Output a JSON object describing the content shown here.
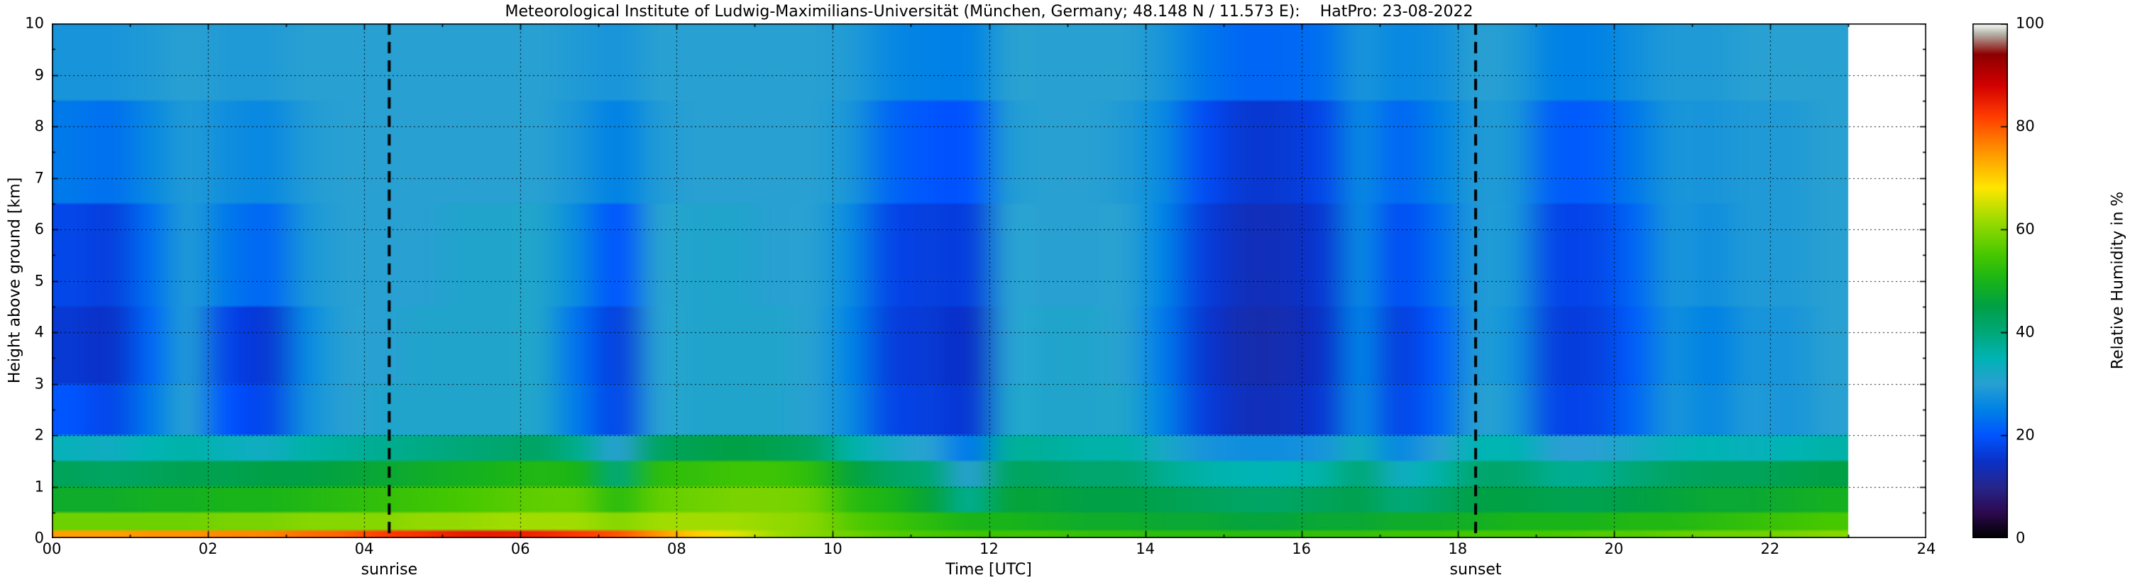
{
  "chart_data": {
    "type": "heatmap",
    "title": "Meteorological Institute of Ludwig-Maximilians-Universität (München, Germany; 48.148 N / 11.573 E):    HatPro: 23-08-2022",
    "xlabel": "Time [UTC]",
    "ylabel": "Height above ground [km]",
    "colorbar_label": "Relative Humidity in %",
    "x_range": [
      0,
      24
    ],
    "y_range": [
      0,
      10
    ],
    "value_range": [
      0,
      100
    ],
    "grid_on": true,
    "data_end_time": 23,
    "x_ticks": {
      "values": [
        0,
        2,
        4,
        6,
        8,
        10,
        12,
        14,
        16,
        18,
        20,
        22,
        24
      ],
      "labels": [
        "00",
        "02",
        "04",
        "06",
        "08",
        "10",
        "12",
        "14",
        "16",
        "18",
        "20",
        "22",
        "24"
      ]
    },
    "y_ticks": {
      "values": [
        0,
        1,
        2,
        3,
        4,
        5,
        6,
        7,
        8,
        9,
        10
      ],
      "labels": [
        "0",
        "1",
        "2",
        "3",
        "4",
        "5",
        "6",
        "7",
        "8",
        "9",
        "10"
      ]
    },
    "colorbar_ticks": {
      "values": [
        0,
        20,
        40,
        60,
        80,
        100
      ],
      "labels": [
        "0",
        "20",
        "40",
        "60",
        "80",
        "100"
      ]
    },
    "x_grid": [
      2,
      4,
      6,
      8,
      10,
      12,
      14,
      16,
      18,
      20,
      22
    ],
    "y_grid": [
      1,
      2,
      3,
      4,
      5,
      6,
      7,
      8,
      9
    ],
    "sunrise": {
      "time_utc": 4.32,
      "label": "sunrise"
    },
    "sunset": {
      "time_utc": 18.23,
      "label": "sunset"
    },
    "colormap": [
      [
        0,
        "#000000"
      ],
      [
        5,
        "#2d0a50"
      ],
      [
        10,
        "#26268c"
      ],
      [
        15,
        "#0a32c8"
      ],
      [
        20,
        "#0055ff"
      ],
      [
        25,
        "#0082e6"
      ],
      [
        30,
        "#28a0d2"
      ],
      [
        35,
        "#00b4b4"
      ],
      [
        40,
        "#00a878"
      ],
      [
        45,
        "#00a046"
      ],
      [
        50,
        "#19b419"
      ],
      [
        55,
        "#46c800"
      ],
      [
        62,
        "#a0dc00"
      ],
      [
        68,
        "#ffe600"
      ],
      [
        75,
        "#ff9600"
      ],
      [
        82,
        "#ff3c00"
      ],
      [
        88,
        "#d20000"
      ],
      [
        94,
        "#8c0000"
      ],
      [
        98,
        "#b4b4aa"
      ],
      [
        100,
        "#ffffff"
      ]
    ],
    "grid": {
      "units": "relative humidity percent, rows bottom_to_top",
      "time_edges": [
        0,
        0.5,
        1,
        1.5,
        2,
        2.5,
        3,
        3.5,
        4,
        4.5,
        5,
        5.5,
        6,
        6.5,
        7,
        7.5,
        8,
        8.5,
        9,
        9.5,
        10,
        10.5,
        11,
        11.5,
        12,
        12.5,
        13,
        13.5,
        14,
        14.5,
        15,
        15.5,
        16,
        16.5,
        17,
        17.5,
        18,
        18.5,
        19,
        19.5,
        20,
        20.5,
        21,
        21.5,
        22,
        22.5,
        23
      ],
      "height_edges": [
        0,
        0.15,
        0.5,
        1.0,
        1.5,
        2.0,
        3.0,
        4.5,
        6.5,
        8.5,
        10
      ],
      "values": [
        [
          74,
          74,
          75,
          75,
          76,
          76,
          78,
          79,
          82,
          83,
          85,
          85,
          84,
          82,
          80,
          75,
          70,
          66,
          62,
          60,
          58,
          56,
          55,
          54,
          54,
          54,
          53,
          53,
          52,
          52,
          52,
          52,
          53,
          53,
          54,
          54,
          55,
          55,
          55,
          56,
          56,
          57,
          58,
          58,
          59,
          60
        ],
        [
          58,
          58,
          58,
          58,
          59,
          59,
          60,
          60,
          60,
          61,
          61,
          62,
          62,
          62,
          60,
          62,
          62,
          62,
          61,
          60,
          56,
          54,
          52,
          50,
          50,
          49,
          48,
          48,
          47,
          47,
          46,
          46,
          47,
          47,
          48,
          48,
          49,
          50,
          50,
          50,
          51,
          51,
          52,
          53,
          54,
          55
        ],
        [
          48,
          48,
          49,
          49,
          50,
          50,
          51,
          52,
          53,
          54,
          55,
          56,
          57,
          57,
          52,
          57,
          58,
          59,
          59,
          58,
          52,
          50,
          46,
          38,
          46,
          46,
          45,
          45,
          44,
          43,
          42,
          42,
          43,
          44,
          40,
          42,
          45,
          45,
          44,
          44,
          45,
          46,
          47,
          47,
          48,
          49
        ],
        [
          43,
          42,
          43,
          44,
          44,
          45,
          45,
          46,
          47,
          48,
          49,
          50,
          51,
          50,
          40,
          52,
          53,
          54,
          54,
          52,
          46,
          42,
          40,
          30,
          42,
          42,
          41,
          41,
          38,
          36,
          35,
          35,
          36,
          40,
          33,
          36,
          41,
          41,
          38,
          38,
          40,
          42,
          43,
          43,
          44,
          45
        ],
        [
          34,
          33,
          35,
          36,
          34,
          33,
          36,
          37,
          38,
          39,
          40,
          41,
          42,
          38,
          30,
          42,
          44,
          45,
          44,
          42,
          36,
          32,
          30,
          24,
          37,
          37,
          36,
          36,
          32,
          28,
          27,
          27,
          28,
          33,
          26,
          30,
          35,
          35,
          30,
          30,
          32,
          34,
          35,
          34,
          35,
          36
        ],
        [
          20,
          18,
          24,
          30,
          20,
          18,
          27,
          30,
          31,
          31,
          31,
          31,
          31,
          24,
          18,
          30,
          31,
          31,
          31,
          30,
          26,
          18,
          17,
          16,
          31,
          31,
          31,
          31,
          25,
          17,
          14,
          14,
          16,
          26,
          18,
          22,
          30,
          28,
          18,
          18,
          22,
          28,
          26,
          29,
          28,
          30
        ],
        [
          16,
          15,
          22,
          29,
          18,
          16,
          26,
          30,
          30,
          31,
          31,
          31,
          31,
          23,
          17,
          30,
          31,
          31,
          31,
          30,
          25,
          17,
          16,
          15,
          30,
          31,
          31,
          30,
          24,
          16,
          13,
          13,
          15,
          25,
          17,
          21,
          29,
          27,
          17,
          17,
          21,
          27,
          25,
          28,
          28,
          30
        ],
        [
          18,
          17,
          23,
          29,
          24,
          22,
          28,
          30,
          30,
          30,
          31,
          31,
          31,
          26,
          20,
          30,
          31,
          31,
          30,
          30,
          26,
          18,
          17,
          17,
          30,
          30,
          30,
          30,
          25,
          17,
          14,
          14,
          16,
          26,
          19,
          23,
          29,
          28,
          18,
          18,
          22,
          28,
          27,
          29,
          29,
          30
        ],
        [
          24,
          23,
          26,
          29,
          27,
          26,
          29,
          30,
          30,
          30,
          30,
          30,
          30,
          28,
          25,
          29,
          30,
          30,
          30,
          30,
          28,
          22,
          20,
          20,
          29,
          30,
          30,
          29,
          26,
          19,
          16,
          16,
          18,
          26,
          22,
          25,
          29,
          28,
          21,
          21,
          24,
          28,
          28,
          29,
          29,
          30
        ],
        [
          28,
          28,
          29,
          30,
          29,
          29,
          30,
          30,
          30,
          30,
          30,
          30,
          30,
          29,
          28,
          30,
          30,
          30,
          30,
          30,
          29,
          26,
          25,
          25,
          30,
          30,
          30,
          30,
          28,
          24,
          22,
          22,
          23,
          28,
          26,
          27,
          30,
          29,
          25,
          25,
          27,
          29,
          29,
          30,
          30,
          30
        ]
      ]
    }
  }
}
